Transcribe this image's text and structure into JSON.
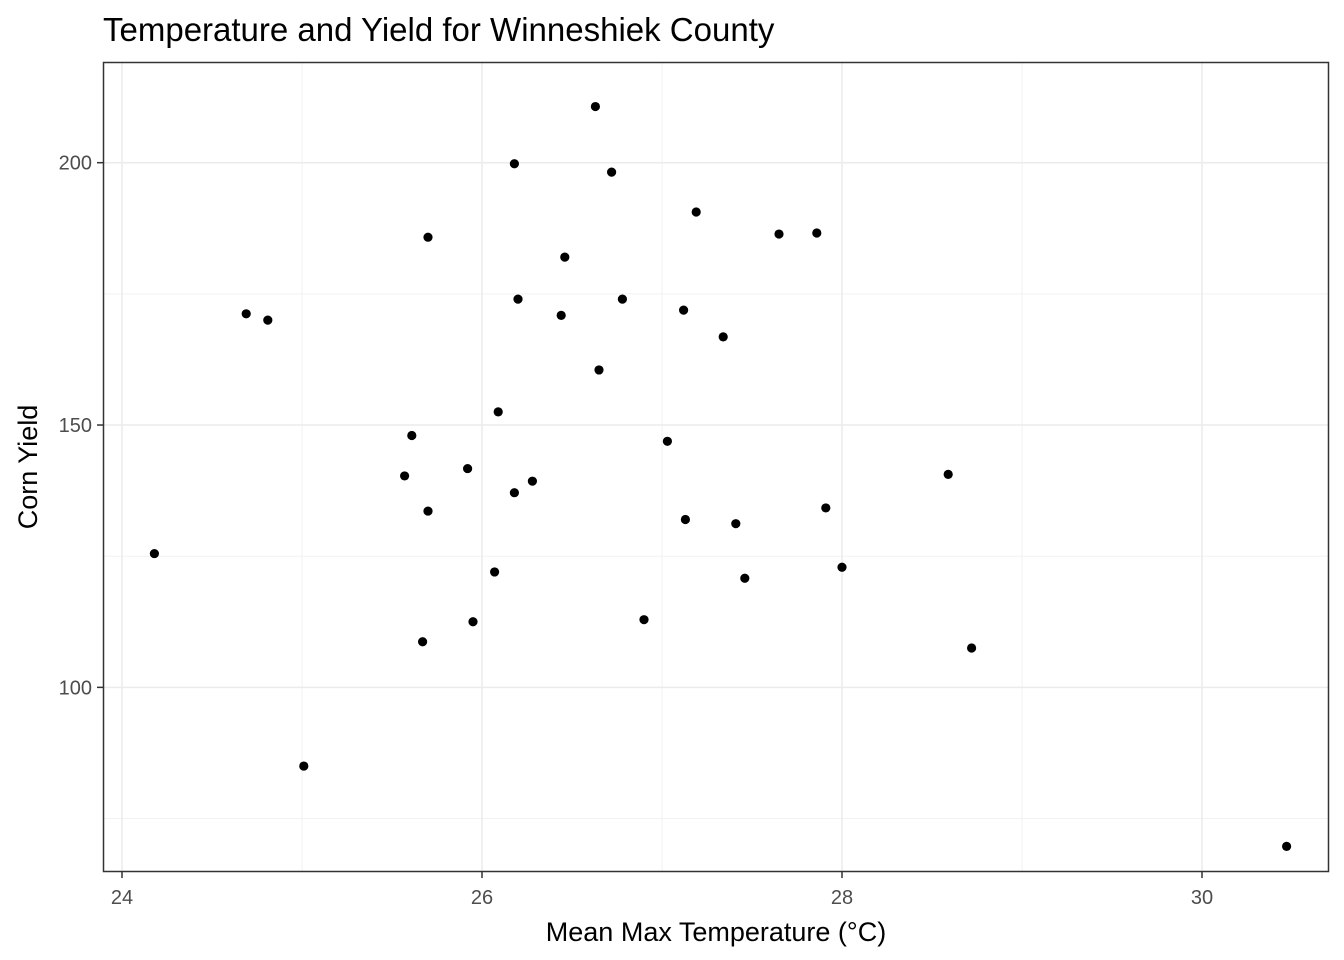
{
  "chart_data": {
    "type": "scatter",
    "title": "Temperature and Yield for Winneshiek County",
    "xlabel": "Mean Max Temperature (°C)",
    "ylabel": "Corn Yield",
    "xlim": [
      23.9,
      30.7
    ],
    "ylim": [
      65,
      219
    ],
    "x_ticks": [
      24,
      26,
      28,
      30
    ],
    "y_ticks": [
      100,
      150,
      200
    ],
    "x_minor": [
      25,
      27,
      29
    ],
    "y_minor": [
      75,
      125,
      175
    ],
    "grid": true,
    "point_color": "#000000",
    "points": [
      {
        "x": 24.18,
        "y": 125.5
      },
      {
        "x": 24.69,
        "y": 171.2
      },
      {
        "x": 24.81,
        "y": 170.0
      },
      {
        "x": 25.01,
        "y": 85.0
      },
      {
        "x": 25.57,
        "y": 140.3
      },
      {
        "x": 25.61,
        "y": 148.0
      },
      {
        "x": 25.67,
        "y": 108.7
      },
      {
        "x": 25.7,
        "y": 185.8
      },
      {
        "x": 25.7,
        "y": 133.6
      },
      {
        "x": 25.92,
        "y": 141.7
      },
      {
        "x": 25.95,
        "y": 112.5
      },
      {
        "x": 26.07,
        "y": 122.0
      },
      {
        "x": 26.09,
        "y": 152.5
      },
      {
        "x": 26.18,
        "y": 199.8
      },
      {
        "x": 26.18,
        "y": 137.1
      },
      {
        "x": 26.2,
        "y": 174.0
      },
      {
        "x": 26.28,
        "y": 139.3
      },
      {
        "x": 26.44,
        "y": 170.9
      },
      {
        "x": 26.46,
        "y": 182.0
      },
      {
        "x": 26.63,
        "y": 210.7
      },
      {
        "x": 26.65,
        "y": 160.5
      },
      {
        "x": 26.72,
        "y": 198.2
      },
      {
        "x": 26.78,
        "y": 174.0
      },
      {
        "x": 26.9,
        "y": 112.9
      },
      {
        "x": 27.03,
        "y": 146.9
      },
      {
        "x": 27.12,
        "y": 171.9
      },
      {
        "x": 27.13,
        "y": 132.0
      },
      {
        "x": 27.19,
        "y": 190.6
      },
      {
        "x": 27.34,
        "y": 166.8
      },
      {
        "x": 27.41,
        "y": 131.2
      },
      {
        "x": 27.46,
        "y": 120.8
      },
      {
        "x": 27.65,
        "y": 186.4
      },
      {
        "x": 27.86,
        "y": 186.6
      },
      {
        "x": 27.91,
        "y": 134.2
      },
      {
        "x": 28.0,
        "y": 122.9
      },
      {
        "x": 28.59,
        "y": 140.6
      },
      {
        "x": 28.72,
        "y": 107.5
      },
      {
        "x": 30.47,
        "y": 69.7
      }
    ]
  }
}
